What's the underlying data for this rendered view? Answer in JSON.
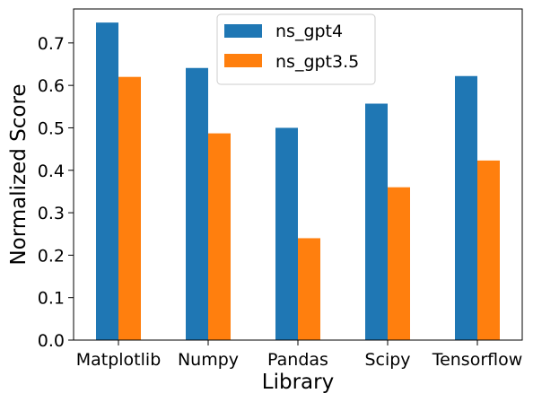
{
  "chart_data": {
    "type": "bar",
    "title": "",
    "xlabel": "Library",
    "ylabel": "Normalized Score",
    "categories": [
      "Matplotlib",
      "Numpy",
      "Pandas",
      "Scipy",
      "Tensorflow"
    ],
    "series": [
      {
        "name": "ns_gpt4",
        "color": "#1f77b4",
        "values": [
          0.748,
          0.641,
          0.5,
          0.557,
          0.622
        ]
      },
      {
        "name": "ns_gpt3.5",
        "color": "#ff7f0e",
        "values": [
          0.62,
          0.487,
          0.24,
          0.36,
          0.423
        ]
      }
    ],
    "ylim": [
      0,
      0.78
    ],
    "yticks": [
      "0.0",
      "0.1",
      "0.2",
      "0.3",
      "0.4",
      "0.5",
      "0.6",
      "0.7"
    ],
    "grid": false,
    "legend": "top-center"
  }
}
